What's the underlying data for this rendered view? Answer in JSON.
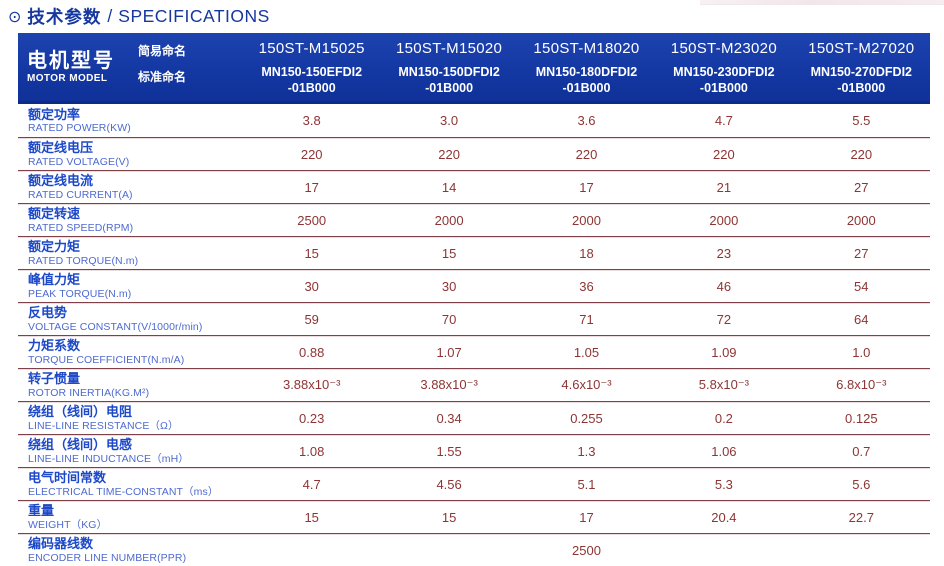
{
  "title": {
    "icon": "⊙",
    "zh": "技术参数",
    "sep": "/",
    "en": "SPECIFICATIONS"
  },
  "colors": {
    "header_blue": "#12359f",
    "header_edge_blue": "#0a2c88",
    "label_blue": "#1d49c8",
    "label_blue_light": "#4e6ad0",
    "value_maroon": "#8e3434",
    "divider_maroon": "#7e4049",
    "title_blue": "#16379e"
  },
  "header": {
    "motor_model_zh": "电机型号",
    "motor_model_en": "MOTOR MODEL",
    "simple_name_label": "简易命名",
    "standard_name_label": "标准命名",
    "columns": [
      {
        "simple": "150ST-M15025",
        "std1": "MN150-150EFDI2",
        "std2": "-01B000"
      },
      {
        "simple": "150ST-M15020",
        "std1": "MN150-150DFDI2",
        "std2": "-01B000"
      },
      {
        "simple": "150ST-M18020",
        "std1": "MN150-180DFDI2",
        "std2": "-01B000"
      },
      {
        "simple": "150ST-M23020",
        "std1": "MN150-230DFDI2",
        "std2": "-01B000"
      },
      {
        "simple": "150ST-M27020",
        "std1": "MN150-270DFDI2",
        "std2": "-01B000"
      }
    ]
  },
  "rows": [
    {
      "zh": "额定功率",
      "en": "RATED POWER(KW)",
      "values": [
        "3.8",
        "3.0",
        "3.6",
        "4.7",
        "5.5"
      ]
    },
    {
      "zh": "额定线电压",
      "en": "RATED VOLTAGE(V)",
      "values": [
        "220",
        "220",
        "220",
        "220",
        "220"
      ]
    },
    {
      "zh": "额定线电流",
      "en": "RATED CURRENT(A)",
      "values": [
        "17",
        "14",
        "17",
        "21",
        "27"
      ]
    },
    {
      "zh": "额定转速",
      "en": "RATED SPEED(RPM)",
      "values": [
        "2500",
        "2000",
        "2000",
        "2000",
        "2000"
      ]
    },
    {
      "zh": "额定力矩",
      "en": "RATED TORQUE(N.m)",
      "values": [
        "15",
        "15",
        "18",
        "23",
        "27"
      ]
    },
    {
      "zh": "峰值力矩",
      "en": "PEAK TORQUE(N.m)",
      "values": [
        "30",
        "30",
        "36",
        "46",
        "54"
      ]
    },
    {
      "zh": "反电势",
      "en": "VOLTAGE CONSTANT(V/1000r/min)",
      "values": [
        "59",
        "70",
        "71",
        "72",
        "64"
      ]
    },
    {
      "zh": "力矩系数",
      "en": "TORQUE COEFFICIENT(N.m/A)",
      "values": [
        "0.88",
        "1.07",
        "1.05",
        "1.09",
        "1.0"
      ]
    },
    {
      "zh": "转子惯量",
      "en": "ROTOR INERTIA(KG.M²)",
      "values": [
        "3.88x10⁻³",
        "3.88x10⁻³",
        "4.6x10⁻³",
        "5.8x10⁻³",
        "6.8x10⁻³"
      ]
    },
    {
      "zh": "绕组（线间）电阻",
      "en": "LINE-LINE RESISTANCE（Ω）",
      "values": [
        "0.23",
        "0.34",
        "0.255",
        "0.2",
        "0.125"
      ]
    },
    {
      "zh": "绕组（线间）电感",
      "en": "LINE-LINE INDUCTANCE（mH）",
      "values": [
        "1.08",
        "1.55",
        "1.3",
        "1.06",
        "0.7"
      ]
    },
    {
      "zh": "电气时间常数",
      "en": "ELECTRICAL TIME-CONSTANT（ms）",
      "values": [
        "4.7",
        "4.56",
        "5.1",
        "5.3",
        "5.6"
      ]
    },
    {
      "zh": "重量",
      "en": "WEIGHT（KG）",
      "values": [
        "15",
        "15",
        "17",
        "20.4",
        "22.7"
      ]
    },
    {
      "zh": "编码器线数",
      "en": "ENCODER LINE NUMBER(PPR)",
      "span_value": "2500"
    }
  ]
}
